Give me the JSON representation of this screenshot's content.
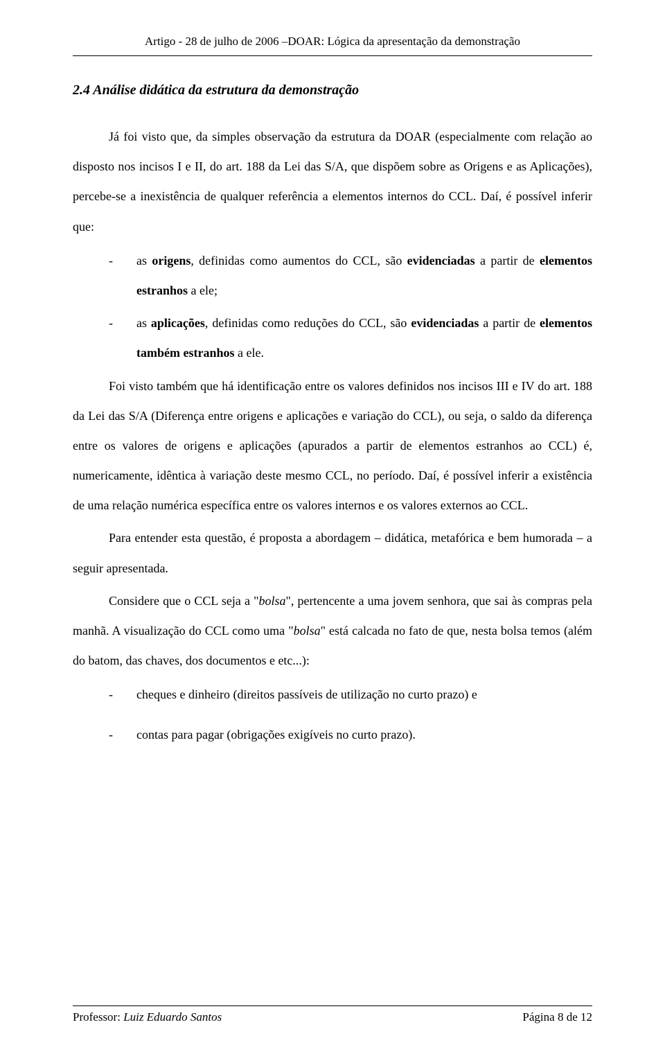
{
  "header": {
    "text": "Artigo - 28 de julho de 2006 –DOAR: Lógica da apresentação da demonstração"
  },
  "section": {
    "heading": "2.4 Análise didática da estrutura da demonstração"
  },
  "paragraphs": {
    "p1_part1": "Já foi visto que, da simples observação da estrutura da DOAR (especialmente com relação ao disposto nos incisos I e II, do art. 188 da Lei das S/A, que dispõem sobre as Origens e as Aplicações), percebe-se a inexistência de qualquer referência a elementos internos do CCL.  Daí, é possível inferir que:",
    "bullet1_prefix": "as ",
    "bullet1_bold1": "origens",
    "bullet1_mid": ", definidas como aumentos do CCL, são ",
    "bullet1_bold2": "evidenciadas",
    "bullet1_suffix": " a partir de ",
    "bullet1_bold3": "elementos estranhos",
    "bullet1_end": " a ele;",
    "bullet2_prefix": "as ",
    "bullet2_bold1": "aplicações",
    "bullet2_mid": ", definidas como reduções do  CCL, são ",
    "bullet2_bold2": "evidenciadas",
    "bullet2_suffix": " a partir de ",
    "bullet2_bold3": "elementos também estranhos",
    "bullet2_end": " a ele.",
    "p2": "Foi visto também que há identificação entre os valores definidos nos incisos III e IV do art. 188 da Lei das S/A (Diferença entre origens e aplicações e variação do CCL), ou seja, o saldo da diferença entre os valores de origens e aplicações (apurados a partir de elementos estranhos ao CCL) é, numericamente, idêntica à variação deste mesmo CCL, no período.  Daí, é possível inferir a existência de uma relação numérica específica entre os valores internos e os valores externos ao CCL.",
    "p3": "Para entender esta questão, é proposta a abordagem – didática, metafórica e bem humorada – a seguir apresentada.",
    "p4_part1": "Considere que o CCL seja a \"",
    "p4_italic1": "bolsa",
    "p4_part2": "\", pertencente a uma jovem senhora, que sai às compras pela manhã.  A visualização do CCL como uma \"",
    "p4_italic2": "bolsa",
    "p4_part3": "\" está calcada no fato de que, nesta bolsa temos (além do batom, das chaves, dos documentos e etc...):",
    "bullet3": "cheques e dinheiro (direitos passíveis de utilização no curto prazo) e",
    "bullet4": "contas para pagar (obrigações exigíveis no curto prazo)."
  },
  "footer": {
    "left_prefix": "Professor: ",
    "left_name": "Luiz Eduardo Santos",
    "right": "Página 8 de 12"
  }
}
